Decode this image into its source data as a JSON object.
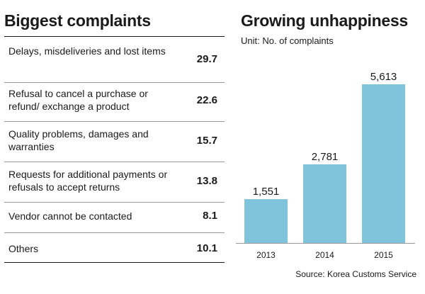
{
  "left_panel": {
    "title": "Biggest complaints",
    "rows": [
      {
        "label": "Delays, misdeliveries and lost items",
        "value": "29.7"
      },
      {
        "label": "Refusal to cancel a purchase or refund/ exchange a product",
        "value": "22.6"
      },
      {
        "label": "Quality problems, damages and warranties",
        "value": "15.7"
      },
      {
        "label": "Requests for additional payments or refusals to accept returns",
        "value": "13.8"
      },
      {
        "label": "Vendor cannot be contacted",
        "value": "8.1"
      },
      {
        "label": "Others",
        "value": "10.1"
      }
    ]
  },
  "right_panel": {
    "title": "Growing unhappiness",
    "unit": "Unit: No. of complaints",
    "source": "Source: Korea Customs Service"
  },
  "colors": {
    "bar": "#7fc4db",
    "text": "#1a1a1a"
  },
  "chart_data": {
    "type": "bar",
    "title": "Growing unhappiness",
    "ylabel": "No. of complaints",
    "xlabel": "",
    "categories": [
      "2013",
      "2014",
      "2015"
    ],
    "values": [
      1551,
      2781,
      5613
    ],
    "value_labels": [
      "1,551",
      "2,781",
      "5,613"
    ],
    "ylim": [
      0,
      5613
    ]
  }
}
